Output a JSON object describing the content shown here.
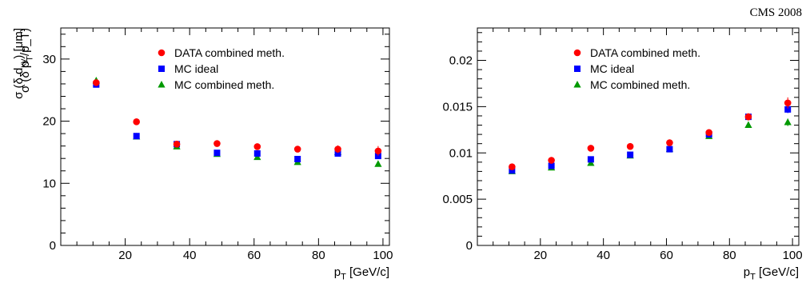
{
  "header": {
    "label": "CMS 2008"
  },
  "legend_entries": [
    {
      "name": "DATA combined meth.",
      "color": "#ff0000",
      "marker": "circle"
    },
    {
      "name": "MC ideal",
      "color": "#0000ff",
      "marker": "square"
    },
    {
      "name": "MC combined meth.",
      "color": "#009900",
      "marker": "triangle"
    }
  ],
  "chart_data": [
    {
      "type": "scatter",
      "xlabel": "p_T [GeV/c]",
      "ylabel": "σ (δ d_xy) [μm]",
      "xlim": [
        0,
        102
      ],
      "ylim": [
        0,
        35
      ],
      "x_ticks": [
        20,
        40,
        60,
        80,
        100
      ],
      "y_ticks": [
        0,
        10,
        20,
        30
      ],
      "y_tick_labels": [
        "0",
        "10",
        "20",
        "30"
      ],
      "x": [
        11,
        23.5,
        36,
        48.5,
        61,
        73.5,
        86,
        98.5
      ],
      "series": [
        {
          "name": "DATA combined meth.",
          "values": [
            26.2,
            19.9,
            16.3,
            16.4,
            15.9,
            15.5,
            15.5,
            15.2
          ],
          "errors": [
            0.4,
            0.3,
            0.3,
            0.3,
            0.4,
            0.5,
            0.6,
            0.8
          ]
        },
        {
          "name": "MC ideal",
          "values": [
            25.9,
            17.6,
            16.3,
            14.9,
            14.8,
            13.9,
            14.8,
            14.4
          ],
          "errors": [
            0.2,
            0.2,
            0.2,
            0.2,
            0.2,
            0.2,
            0.3,
            0.3
          ]
        },
        {
          "name": "MC combined meth.",
          "values": [
            26.5,
            17.5,
            15.9,
            14.7,
            14.2,
            13.4,
            15.0,
            13.1
          ],
          "errors": [
            0.2,
            0.2,
            0.2,
            0.2,
            0.2,
            0.2,
            0.3,
            0.3
          ]
        }
      ]
    },
    {
      "type": "scatter",
      "xlabel": "p_T [GeV/c]",
      "ylabel": "σ (δ p_T/p_T)",
      "xlim": [
        0,
        102
      ],
      "ylim": [
        0,
        0.0235
      ],
      "x_ticks": [
        20,
        40,
        60,
        80,
        100
      ],
      "y_ticks": [
        0,
        0.005,
        0.01,
        0.015,
        0.02
      ],
      "y_tick_labels": [
        "0",
        "0.005",
        "0.01",
        "0.015",
        "0.02"
      ],
      "x": [
        11,
        23.5,
        36,
        48.5,
        61,
        73.5,
        86,
        98.5
      ],
      "series": [
        {
          "name": "DATA combined meth.",
          "values": [
            0.0085,
            0.0092,
            0.0105,
            0.0107,
            0.0111,
            0.0122,
            0.0139,
            0.0154
          ],
          "errors": [
            0.0001,
            0.0001,
            0.0001,
            0.0001,
            0.0002,
            0.0003,
            0.0004,
            0.0006
          ]
        },
        {
          "name": "MC ideal",
          "values": [
            0.0081,
            0.0086,
            0.0093,
            0.0098,
            0.0104,
            0.012,
            0.0139,
            0.0147
          ],
          "errors": [
            0.0001,
            0.0001,
            0.0001,
            0.0001,
            0.0001,
            0.0002,
            0.0003,
            0.0004
          ]
        },
        {
          "name": "MC combined meth.",
          "values": [
            0.008,
            0.0084,
            0.0089,
            0.0097,
            0.0104,
            0.0118,
            0.013,
            0.0133
          ],
          "errors": [
            0.0001,
            0.0001,
            0.0001,
            0.0001,
            0.0001,
            0.0002,
            0.0003,
            0.0004
          ]
        }
      ]
    }
  ]
}
